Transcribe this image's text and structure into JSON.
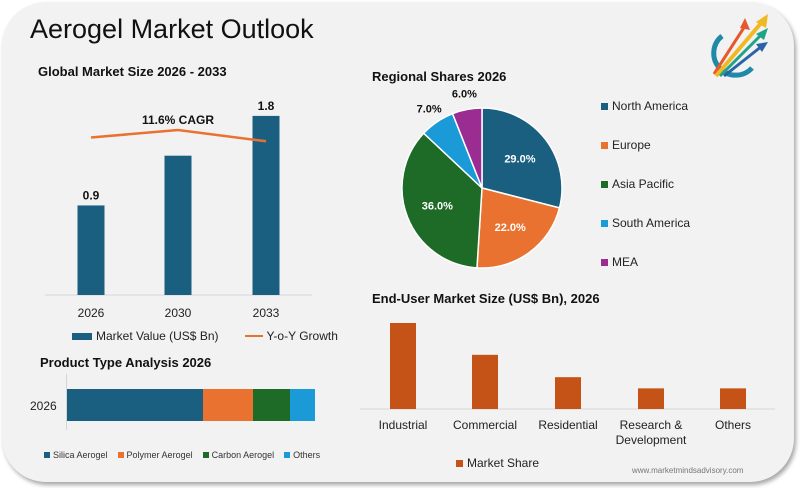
{
  "title": "Aerogel Market Outlook",
  "logo": "growth-arrows-logo",
  "watermark": "www.marketmindsadvisory.com",
  "colors": {
    "navy": "#1a5e80",
    "orange": "#ea7231",
    "green": "#1e6b27",
    "sky": "#1a9bd7",
    "purple": "#9b2c91",
    "rust": "#c55217",
    "background": "#f2f2f2"
  },
  "chart_data": [
    {
      "id": "market-size",
      "type": "bar",
      "title": "Global Market Size 2026 - 2033",
      "categories": [
        "2026",
        "2030",
        "2033"
      ],
      "series": [
        {
          "name": "Market Value (US$ Bn)",
          "type": "bar",
          "values": [
            0.9,
            1.4,
            1.8
          ],
          "data_labels": [
            "0.9",
            "",
            "1.8"
          ]
        },
        {
          "name": "Y-o-Y Growth",
          "type": "line",
          "values": [
            11.2,
            11.8,
            10.9
          ]
        }
      ],
      "annotation": "11.6% CAGR",
      "legend": [
        "Market Value (US$ Bn)",
        "Y-o-Y Growth"
      ],
      "legend_position": "bottom",
      "ylim": [
        0,
        2.0
      ],
      "grid": false
    },
    {
      "id": "regional-shares",
      "type": "pie",
      "title": "Regional Shares 2026",
      "labels": [
        "North America",
        "Europe",
        "Asia Pacific",
        "South America",
        "MEA"
      ],
      "values": [
        29.0,
        22.0,
        36.0,
        7.0,
        6.0
      ],
      "value_labels": [
        "29.0%",
        "22.0%",
        "36.0%",
        "7.0%",
        "6.0%"
      ],
      "legend_position": "right"
    },
    {
      "id": "product-type",
      "type": "bar",
      "orientation": "horizontal-stacked",
      "title": "Product Type Analysis 2026",
      "categories": [
        "2026"
      ],
      "series": [
        {
          "name": "Silica Aerogel",
          "values": [
            55
          ]
        },
        {
          "name": "Polymer Aerogel",
          "values": [
            20
          ]
        },
        {
          "name": "Carbon Aerogel",
          "values": [
            15
          ]
        },
        {
          "name": "Others",
          "values": [
            10
          ]
        }
      ],
      "unit": "percent",
      "legend_position": "bottom"
    },
    {
      "id": "end-user",
      "type": "bar",
      "title": "End-User Market Size (US$ Bn), 2026",
      "categories": [
        "Industrial",
        "Commercial",
        "Residential",
        "Research & Development",
        "Others"
      ],
      "category_lines": [
        [
          "Industrial"
        ],
        [
          "Commercial"
        ],
        [
          "Residential"
        ],
        [
          "Research &",
          "Development"
        ],
        [
          "Others"
        ]
      ],
      "series": [
        {
          "name": "Market Share",
          "values": [
            100,
            63,
            37,
            24,
            24
          ]
        }
      ],
      "unit": "relative",
      "legend_position": "bottom"
    }
  ]
}
